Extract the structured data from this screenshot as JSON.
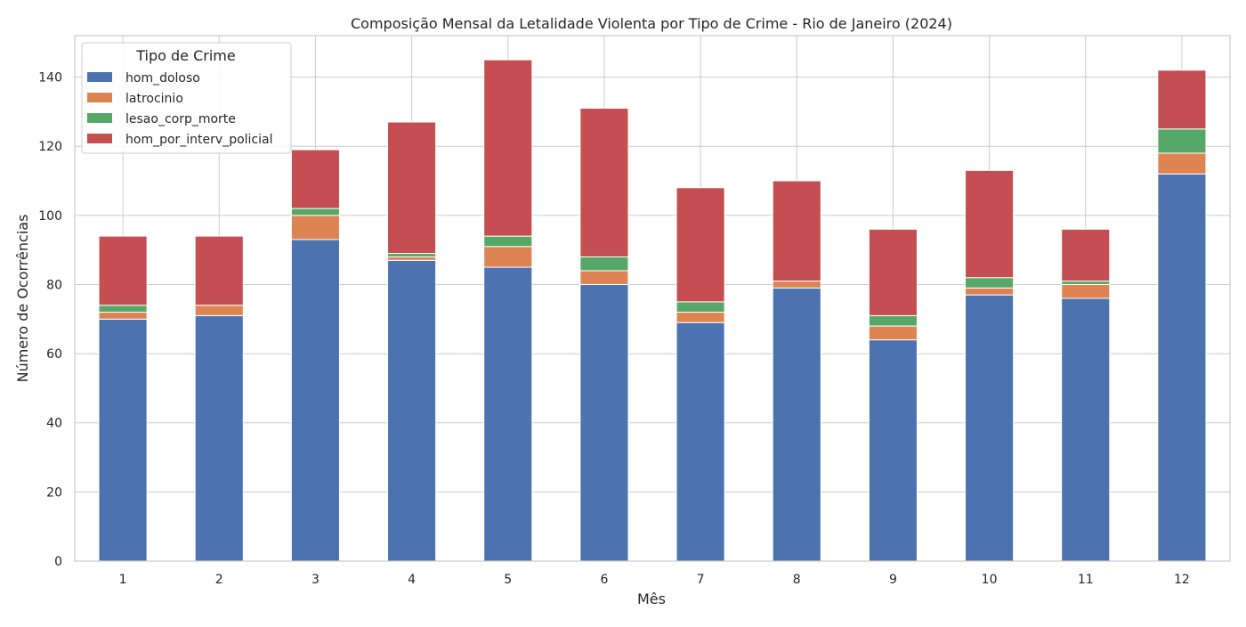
{
  "chart_data": {
    "type": "bar",
    "stacked": true,
    "title": "Composição Mensal da Letalidade Violenta por Tipo de Crime - Rio de Janeiro (2024)",
    "xlabel": "Mês",
    "ylabel": "Número de Ocorrências",
    "categories": [
      "1",
      "2",
      "3",
      "4",
      "5",
      "6",
      "7",
      "8",
      "9",
      "10",
      "11",
      "12"
    ],
    "ylim": [
      0,
      152
    ],
    "yticks": [
      0,
      20,
      40,
      60,
      80,
      100,
      120,
      140
    ],
    "grid": true,
    "legend": {
      "title": "Tipo de Crime",
      "placement": "upper-left"
    },
    "series": [
      {
        "name": "hom_doloso",
        "color": "#4c72b0",
        "values": [
          70,
          71,
          93,
          87,
          85,
          80,
          69,
          79,
          64,
          77,
          76,
          112
        ]
      },
      {
        "name": "latrocinio",
        "color": "#dd8452",
        "values": [
          2,
          3,
          7,
          1,
          6,
          4,
          3,
          2,
          4,
          2,
          4,
          6
        ]
      },
      {
        "name": "lesao_corp_morte",
        "color": "#55a868",
        "values": [
          2,
          0,
          2,
          1,
          3,
          4,
          3,
          0,
          3,
          3,
          1,
          7
        ]
      },
      {
        "name": "hom_por_interv_policial",
        "color": "#c44e52",
        "values": [
          20,
          20,
          17,
          38,
          51,
          43,
          33,
          29,
          25,
          31,
          15,
          17
        ]
      }
    ]
  }
}
